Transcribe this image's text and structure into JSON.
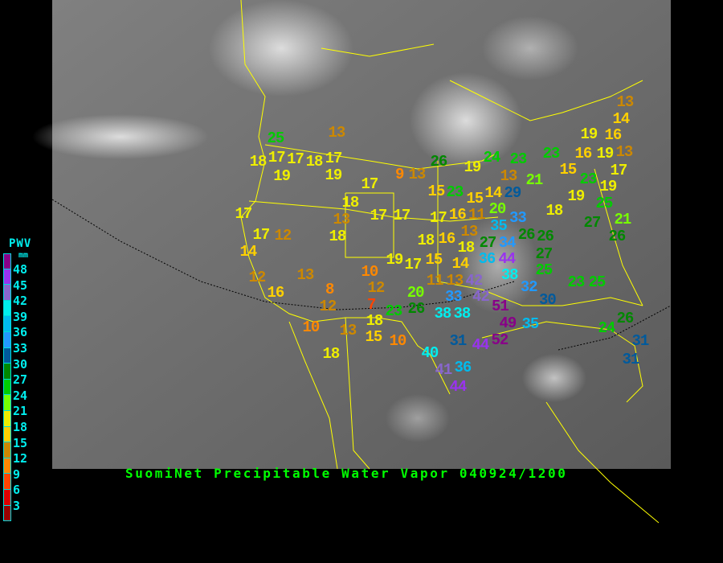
{
  "title": "SuomiNet Precipitable Water Vapor 040924/1200",
  "legend": {
    "title": "PWV",
    "unit": "mm",
    "labels": [
      "48",
      "45",
      "42",
      "39",
      "36",
      "33",
      "30",
      "27",
      "24",
      "21",
      "18",
      "15",
      "12",
      "9",
      "6",
      "3"
    ],
    "colors": [
      "#880088",
      "#9933ee",
      "#8866cc",
      "#00eeee",
      "#00bbee",
      "#2299ff",
      "#005a9c",
      "#008800",
      "#00cc00",
      "#77ff00",
      "#eeee00",
      "#ffd000",
      "#cc8800",
      "#ff8800",
      "#ff4400",
      "#dd0000",
      "#990000"
    ]
  },
  "stations": [
    25,
    18,
    17,
    17,
    18,
    17,
    19,
    19,
    13,
    17,
    9,
    13,
    26,
    15,
    23,
    17,
    17,
    12,
    14,
    18,
    13,
    18,
    17,
    17,
    17,
    16,
    11,
    15,
    20,
    18,
    16,
    13,
    19,
    17,
    15,
    18,
    14,
    13,
    11,
    12,
    16,
    13,
    8,
    12,
    10,
    12,
    7,
    20,
    23,
    26,
    18,
    15,
    13,
    10,
    10,
    18,
    33,
    38,
    38,
    31,
    40,
    41,
    36,
    44,
    44,
    42,
    42,
    51,
    49,
    52,
    35,
    36,
    44,
    38,
    32,
    30,
    25,
    27,
    26,
    26,
    33,
    35,
    27,
    34,
    29,
    14,
    13,
    21,
    23,
    24,
    23,
    19,
    18,
    19,
    16,
    15,
    19,
    23,
    19,
    25,
    16,
    19,
    13,
    13,
    14,
    17,
    23,
    25,
    27,
    21,
    26,
    26,
    24,
    31,
    31
  ]
}
